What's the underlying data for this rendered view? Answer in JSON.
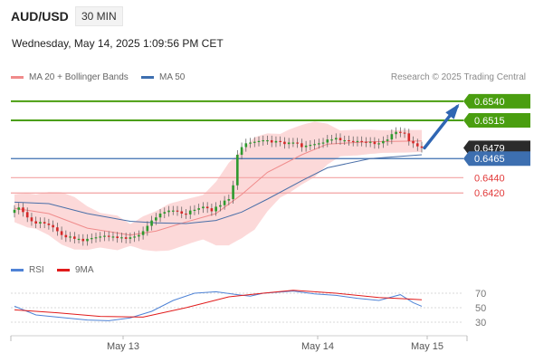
{
  "header": {
    "symbol": "AUD/USD",
    "timeframe": "30 MIN",
    "timestamp": "Wednesday, May 14, 2025 1:09:56 PM CET"
  },
  "legend": {
    "ma20": {
      "label": "MA 20 + Bollinger Bands",
      "color": "#f08b8b"
    },
    "ma50": {
      "label": "MA 50",
      "color": "#3d6fb0"
    }
  },
  "credit": "Research © 2025 Trading Central",
  "colors": {
    "resistance": "#4a9e10",
    "support": "#e23a3a",
    "pivot": "#3d6fb0",
    "arrow": "#2f66b3",
    "candle_up": "#2e9a2e",
    "candle_down": "#d62828"
  },
  "levels": {
    "resistance": [
      {
        "value": 0.654,
        "label": "0.6540"
      },
      {
        "value": 0.6515,
        "label": "0.6515"
      }
    ],
    "pivot": {
      "value": 0.6465,
      "label": "0.6465"
    },
    "current": {
      "value": 0.6479,
      "label": "0.6479"
    },
    "support": [
      {
        "value": 0.644,
        "label": "0.6440"
      },
      {
        "value": 0.642,
        "label": "0.6420"
      }
    ]
  },
  "rsi_panel": {
    "legend": [
      {
        "label": "RSI",
        "color": "#4f83d6"
      },
      {
        "label": "9MA",
        "color": "#e11b1b"
      }
    ],
    "ticks": [
      "70",
      "50",
      "30"
    ]
  },
  "x_axis": {
    "labels": [
      "May 13",
      "May 14",
      "May 15"
    ]
  },
  "chart_data": [
    {
      "type": "candlestick",
      "title": "AUD/USD",
      "ylim": [
        0.6335,
        0.656
      ],
      "close": [
        0.6398,
        0.6401,
        0.6395,
        0.6388,
        0.6383,
        0.638,
        0.6382,
        0.638,
        0.6378,
        0.6375,
        0.637,
        0.6365,
        0.6362,
        0.6363,
        0.636,
        0.636,
        0.6357,
        0.636,
        0.6361,
        0.6362,
        0.6363,
        0.6364,
        0.6363,
        0.6363,
        0.6361,
        0.6362,
        0.636,
        0.6362,
        0.6363,
        0.6365,
        0.637,
        0.6377,
        0.6384,
        0.6388,
        0.6393,
        0.6395,
        0.6397,
        0.6397,
        0.6396,
        0.6393,
        0.6392,
        0.6397,
        0.6398,
        0.64,
        0.6402,
        0.64,
        0.6396,
        0.6402,
        0.6404,
        0.641,
        0.6412,
        0.643,
        0.647,
        0.648,
        0.6485,
        0.6486,
        0.6487,
        0.6488,
        0.6489,
        0.6489,
        0.6486,
        0.6488,
        0.6487,
        0.6484,
        0.6486,
        0.6486,
        0.6485,
        0.648,
        0.6482,
        0.6483,
        0.6484,
        0.6485,
        0.6486,
        0.649,
        0.649,
        0.6492,
        0.6489,
        0.6489,
        0.6488,
        0.6487,
        0.6488,
        0.6487,
        0.6486,
        0.6487,
        0.6484,
        0.6485,
        0.6488,
        0.649,
        0.6497,
        0.65,
        0.6499,
        0.6498,
        0.6488,
        0.6485,
        0.6481,
        0.6479
      ]
    },
    {
      "type": "line",
      "name": "MA 20",
      "x": [
        0,
        8,
        17,
        27,
        33,
        40,
        47,
        53,
        59,
        67,
        73,
        83,
        95
      ],
      "y": [
        0.64,
        0.6393,
        0.6374,
        0.6365,
        0.637,
        0.6382,
        0.6393,
        0.6418,
        0.6447,
        0.647,
        0.6484,
        0.6487,
        0.6488
      ]
    },
    {
      "type": "line",
      "name": "MA 50",
      "x": [
        0,
        8,
        17,
        27,
        33,
        40,
        47,
        53,
        59,
        67,
        73,
        83,
        95
      ],
      "y": [
        0.6408,
        0.6406,
        0.6393,
        0.6383,
        0.6381,
        0.638,
        0.6384,
        0.6395,
        0.6412,
        0.6436,
        0.6453,
        0.6465,
        0.647
      ]
    },
    {
      "type": "line",
      "name": "RSI",
      "x": [
        0,
        5,
        10,
        17,
        22,
        27,
        32,
        37,
        42,
        47,
        52,
        55,
        58,
        65,
        70,
        75,
        80,
        85,
        90,
        93,
        95
      ],
      "y": [
        52,
        40,
        37,
        33,
        32,
        36,
        45,
        60,
        70,
        72,
        68,
        66,
        70,
        73,
        69,
        67,
        63,
        60,
        68,
        57,
        52
      ]
    },
    {
      "type": "line",
      "name": "9MA",
      "x": [
        0,
        10,
        20,
        30,
        40,
        50,
        58,
        65,
        75,
        85,
        92,
        95
      ],
      "y": [
        47,
        43,
        38,
        37,
        50,
        65,
        70,
        74,
        70,
        64,
        62,
        61
      ]
    }
  ]
}
